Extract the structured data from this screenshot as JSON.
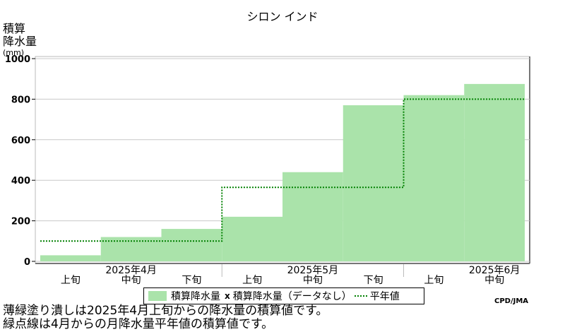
{
  "chart_data": {
    "type": "bar",
    "title": "シロン インド",
    "ylabel": [
      "積算",
      "降水量",
      "(mm)"
    ],
    "ylim": [
      0,
      1000
    ],
    "yticks": [
      "0",
      "200",
      "400",
      "600",
      "800",
      "1000"
    ],
    "categories": [
      "2025年4月 上旬",
      "2025年4月 中旬",
      "2025年4月 下旬",
      "2025年5月 上旬",
      "2025年5月 中旬",
      "2025年5月 下旬",
      "2025年6月 上旬",
      "2025年6月 中旬"
    ],
    "dekad_labels": [
      "上旬",
      "中旬",
      "下旬",
      "上旬",
      "中旬",
      "下旬",
      "上旬",
      "中旬"
    ],
    "month_labels": [
      "2025年4月",
      "2025年5月",
      "2025年6月"
    ],
    "series": [
      {
        "name": "積算降水量",
        "type": "bar",
        "values": [
          30,
          120,
          160,
          220,
          440,
          770,
          820,
          875
        ]
      },
      {
        "name": "平年値",
        "type": "step",
        "values": [
          100,
          100,
          100,
          365,
          365,
          365,
          800,
          800
        ]
      }
    ],
    "grid": true,
    "colors": {
      "bars": "#aae3aa",
      "normal_line": "#008000",
      "grid": "#c8c8c8"
    }
  },
  "legend": {
    "bar_label": "積算降水量",
    "missing_label": "積算降水量（データなし）",
    "line_label": "平年値",
    "missing_marker": "x"
  },
  "credit": "CPD/JMA",
  "notes": [
    "薄緑塗り潰しは2025年4月上旬からの降水量の積算値です。",
    "緑点線は4月からの月降水量平年値の積算値です。"
  ]
}
